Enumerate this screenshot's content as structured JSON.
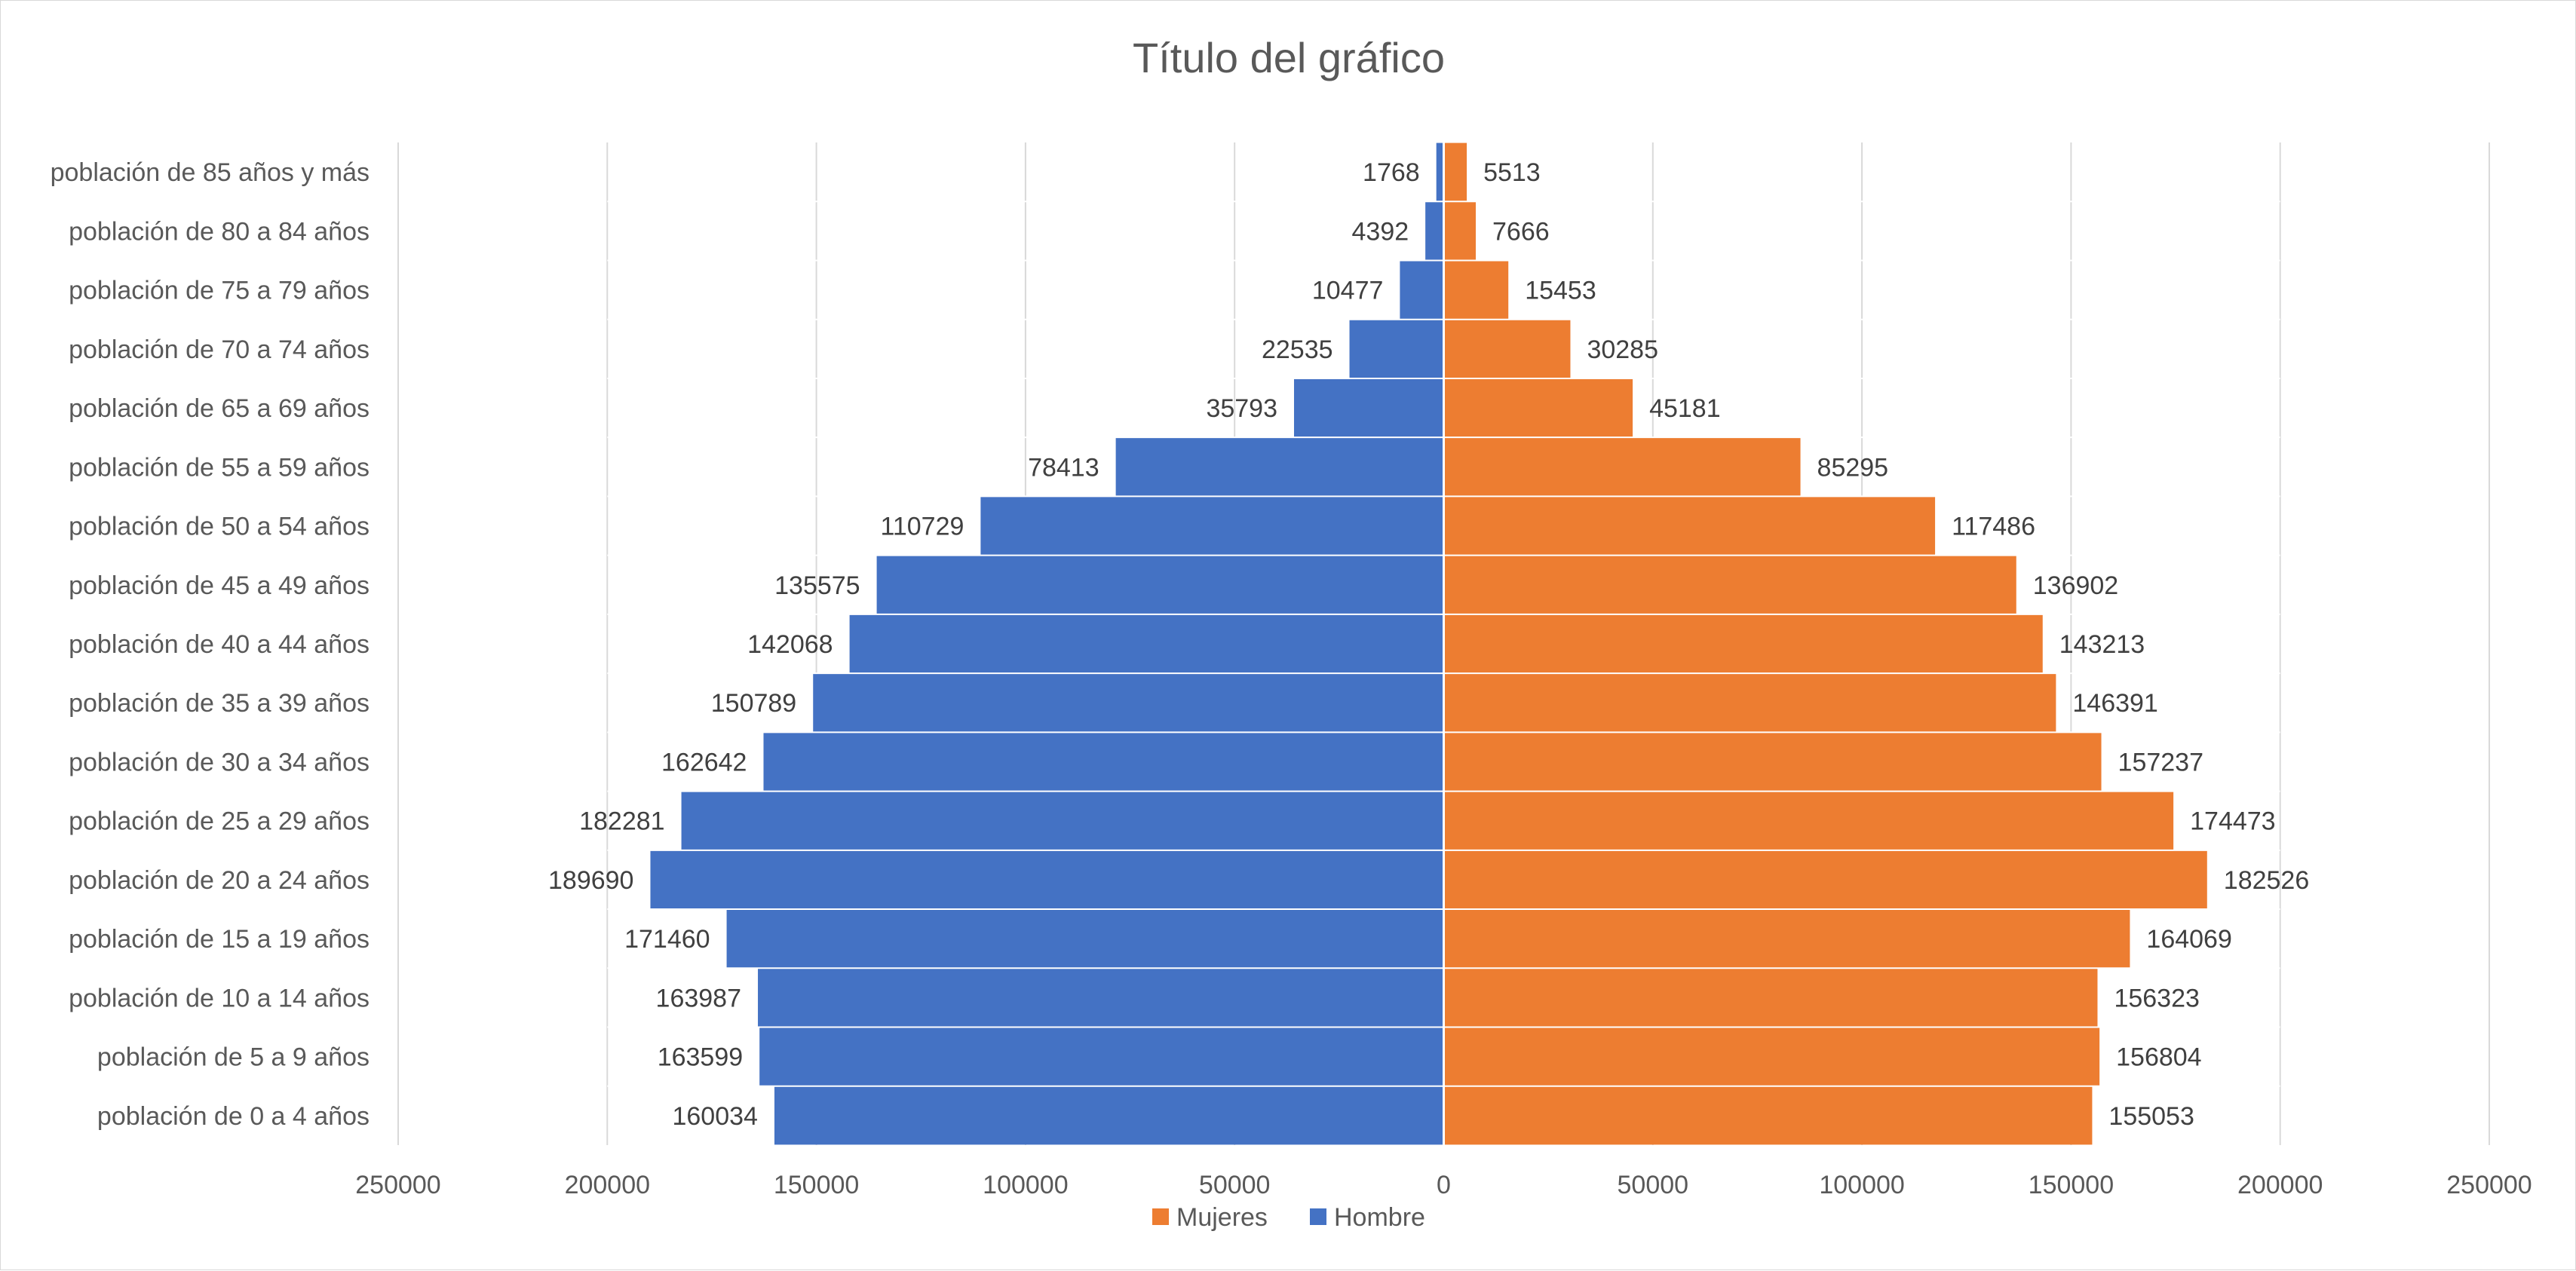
{
  "chart_data": {
    "type": "bar",
    "orientation": "horizontal",
    "subtype": "population-pyramid",
    "title": "Título del gráfico",
    "categories": [
      "población  de 0 a 4 años",
      "población  de 5 a 9 años",
      "población  de 10 a 14 años",
      "población  de 15 a 19 años",
      "población  de 20 a 24 años",
      "población  de 25 a 29 años",
      "población  de 30 a 34 años",
      "población  de 35 a 39 años",
      "población  de 40 a 44 años",
      "población  de 45 a 49 años",
      "población  de 50 a 54 años",
      "población  de 55 a 59 años",
      "población  de 65 a 69 años",
      "población  de 70 a 74 años",
      "población  de 75 a 79 años",
      "población  de 80 a 84 años",
      "población  de 85 años y más"
    ],
    "series": [
      {
        "name": "Mujeres",
        "color": "#ED7D31",
        "side": "right",
        "values": [
          155053,
          156804,
          156323,
          164069,
          182526,
          174473,
          157237,
          146391,
          143213,
          136902,
          117486,
          85295,
          45181,
          30285,
          15453,
          7666,
          5513
        ]
      },
      {
        "name": "Hombre",
        "color": "#4472C4",
        "side": "left",
        "values": [
          160034,
          163599,
          163987,
          171460,
          189690,
          182281,
          162642,
          150789,
          142068,
          135575,
          110729,
          78413,
          35793,
          22535,
          10477,
          4392,
          1768
        ]
      }
    ],
    "xlim": [
      -250000,
      250000
    ],
    "x_ticks": [
      -250000,
      -200000,
      -150000,
      -100000,
      -50000,
      0,
      50000,
      100000,
      150000,
      200000,
      250000
    ],
    "x_tick_labels": [
      "250000",
      "200000",
      "150000",
      "100000",
      "50000",
      "0",
      "50000",
      "100000",
      "150000",
      "200000",
      "250000"
    ],
    "grid": "vertical",
    "legend_position": "bottom"
  }
}
